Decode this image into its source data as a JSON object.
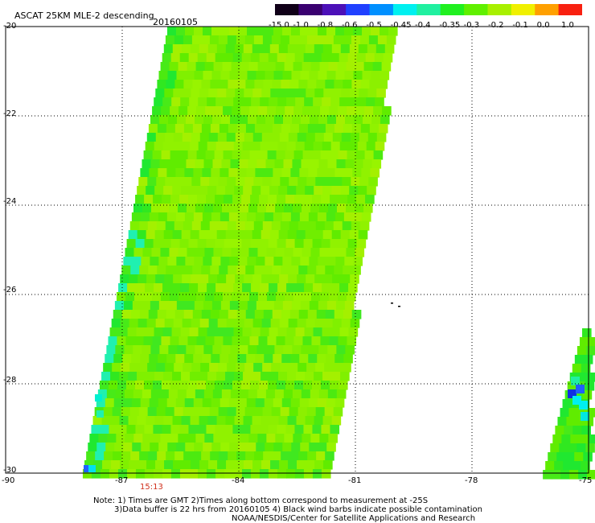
{
  "header": {
    "title": "ASCAT 25KM MLE-2 descending",
    "date": "20160105"
  },
  "colorbar": {
    "labels": [
      "-15.0",
      "-1.0",
      "-0.8",
      "-0.6",
      "-0.5",
      "-0.45",
      "-0.4",
      "-0.35",
      "-0.3",
      "-0.2",
      "-0.1",
      "0.0",
      "1.0"
    ],
    "colors": [
      "#100018",
      "#3a0070",
      "#4c10b8",
      "#2040ff",
      "#0090ff",
      "#00f0f0",
      "#20f0a0",
      "#20f020",
      "#60f000",
      "#a8f000",
      "#f0f000",
      "#ffa000",
      "#f82010"
    ]
  },
  "axes": {
    "y_labels": [
      "-20",
      "-22",
      "-24",
      "-26",
      "-28",
      "-30"
    ],
    "x_labels": [
      "-90",
      "-87",
      "-84",
      "-81",
      "-78",
      "-75"
    ]
  },
  "time_label": "15:13",
  "notes": {
    "line1": "Note: 1) Times are GMT 2)Times along bottom correspond to measurement at -25S",
    "line2": "3)Data buffer is 22 hrs from 20160105 4) Black wind barbs indicate possible contamination",
    "line3": "NOAA/NESDIS/Center for Satellite Applications and Research"
  }
}
